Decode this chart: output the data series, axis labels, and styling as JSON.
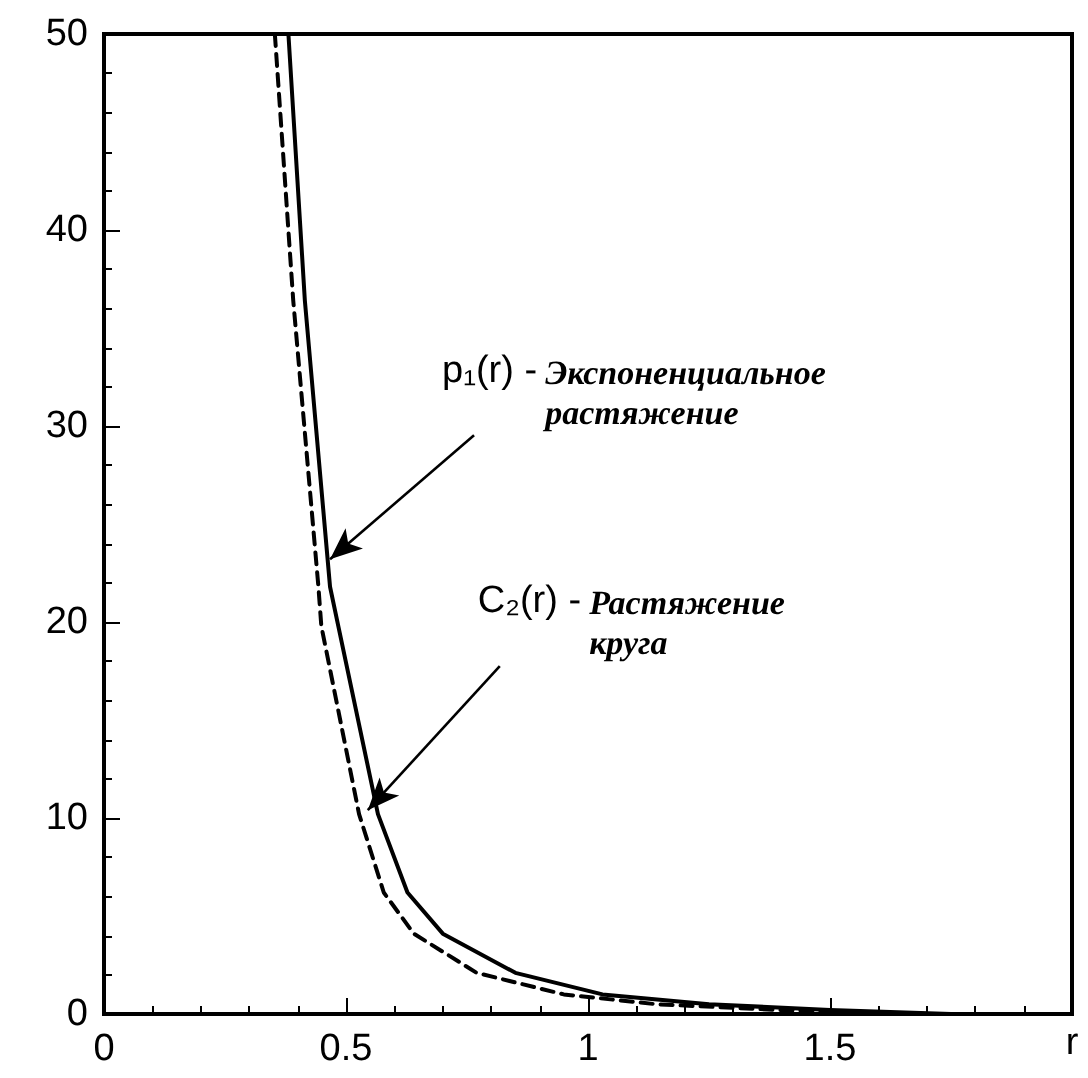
{
  "chart_data": {
    "type": "line",
    "xlabel": "r",
    "xlim": [
      0,
      2
    ],
    "xticks": [
      0,
      0.5,
      1,
      1.5
    ],
    "ylim": [
      0,
      50
    ],
    "yticks": [
      0,
      10,
      20,
      30,
      40,
      50
    ],
    "grid": false,
    "marker": "none",
    "series": [
      {
        "color": "#000000",
        "line_style": "solid",
        "x": [
          0.381,
          0.415,
          0.467,
          0.484,
          0.566,
          0.627,
          0.7,
          0.85,
          1.03,
          1.25,
          1.5,
          1.75,
          2
        ],
        "values": [
          50,
          36.4,
          21.8,
          19.8,
          10.2,
          6.2,
          4.1,
          2.1,
          1,
          0.5,
          0.2,
          0,
          0
        ]
      },
      {
        "color": "#000000",
        "line_style": "dashed",
        "x": [
          0.353,
          0.391,
          0.443,
          0.449,
          0.527,
          0.578,
          0.64,
          0.77,
          0.95,
          1.14,
          1.4,
          1.7,
          2
        ],
        "values": [
          50,
          36.4,
          21.8,
          19.8,
          10.2,
          6.2,
          4.1,
          2.1,
          1,
          0.5,
          0.2,
          0,
          0
        ]
      }
    ],
    "annotations": [
      {
        "text": "p₁(r) - Экспоненциальное растяжение",
        "x": 0.467,
        "y": 23.2
      },
      {
        "text": "C₂(r) - Растяжение круга",
        "x": 0.545,
        "y": 10.4
      }
    ]
  }
}
